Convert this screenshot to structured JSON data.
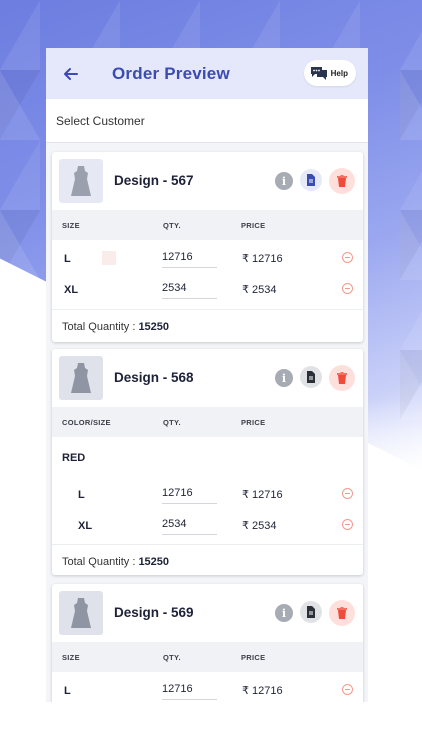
{
  "header": {
    "title": "Order Preview",
    "help_label": "Help"
  },
  "customer": {
    "label": "Select Customer"
  },
  "cards": [
    {
      "design": "Design - 567",
      "columns": {
        "size": "SIZE",
        "qty": "QTY.",
        "price": "PRICE"
      },
      "rows": [
        {
          "size": "L",
          "qty": "12716",
          "price": "₹ 12716"
        },
        {
          "size": "XL",
          "qty": "2534",
          "price": "₹ 2534"
        }
      ],
      "total_label": "Total Quantity :",
      "total_value": "15250"
    },
    {
      "design": "Design - 568",
      "columns": {
        "size": "COLOR/SIZE",
        "qty": "QTY.",
        "price": "PRICE"
      },
      "color": "RED",
      "rows": [
        {
          "size": "L",
          "qty": "12716",
          "price": "₹ 12716"
        },
        {
          "size": "XL",
          "qty": "2534",
          "price": "₹ 2534"
        }
      ],
      "total_label": "Total Quantity :",
      "total_value": "15250"
    },
    {
      "design": "Design - 569",
      "columns": {
        "size": "SIZE",
        "qty": "QTY.",
        "price": "PRICE"
      },
      "rows": [
        {
          "size": "L",
          "qty": "12716",
          "price": "₹ 12716"
        }
      ]
    }
  ],
  "icons": {
    "back": "arrow-left-icon",
    "help": "chat-bubble-icon",
    "info": "info-icon",
    "document": "document-icon",
    "delete": "trash-icon",
    "remove": "minus-circle-icon",
    "garment": "dress-icon"
  },
  "colors": {
    "accent": "#3a4bb2",
    "header_bg": "#e5e8fb",
    "delete": "#f04a3a",
    "remove": "#f19a8c"
  }
}
